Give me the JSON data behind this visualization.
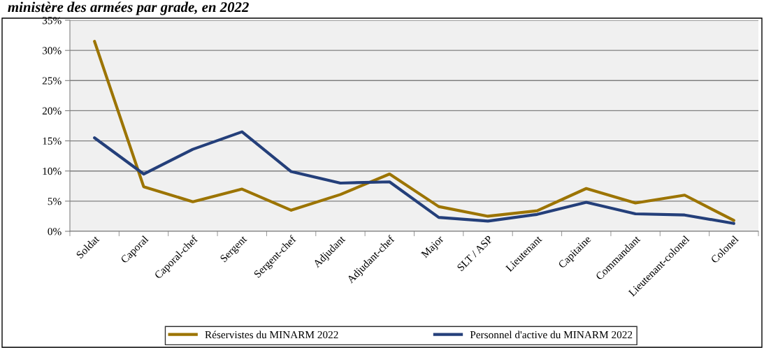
{
  "chart_data": {
    "type": "line",
    "title": "ministère des armées par grade, en 2022",
    "categories": [
      "Soldat",
      "Caporal",
      "Caporal-chef",
      "Sergent",
      "Sergent-chef",
      "Adjudant",
      "Adjudant-chef",
      "Major",
      "SLT / ASP",
      "Lieutenant",
      "Capitaine",
      "Commandant",
      "Lieutenant-colonel",
      "Colonel"
    ],
    "series": [
      {
        "name": "Réservistes du MINARM 2022",
        "color": "#9c7400",
        "values": [
          31.5,
          7.4,
          4.9,
          7.0,
          3.5,
          6.1,
          9.5,
          4.1,
          2.5,
          3.4,
          7.1,
          4.7,
          6.0,
          1.8
        ]
      },
      {
        "name": "Personnel d'active du MINARM 2022",
        "color": "#243f7a",
        "values": [
          15.5,
          9.5,
          13.6,
          16.5,
          9.9,
          8.0,
          8.2,
          2.3,
          1.7,
          2.8,
          4.8,
          2.9,
          2.7,
          1.3
        ]
      }
    ],
    "ylim": [
      0,
      35
    ],
    "yticks": [
      {
        "value": 0,
        "label": "0%"
      },
      {
        "value": 5,
        "label": "5%"
      },
      {
        "value": 10,
        "label": "10%"
      },
      {
        "value": 15,
        "label": "15%"
      },
      {
        "value": 20,
        "label": "20%"
      },
      {
        "value": 25,
        "label": "25%"
      },
      {
        "value": 30,
        "label": "30%"
      },
      {
        "value": 35,
        "label": "35%"
      }
    ],
    "grid": "y",
    "legend": "bottom",
    "marker": "none",
    "line_style": "solid"
  }
}
